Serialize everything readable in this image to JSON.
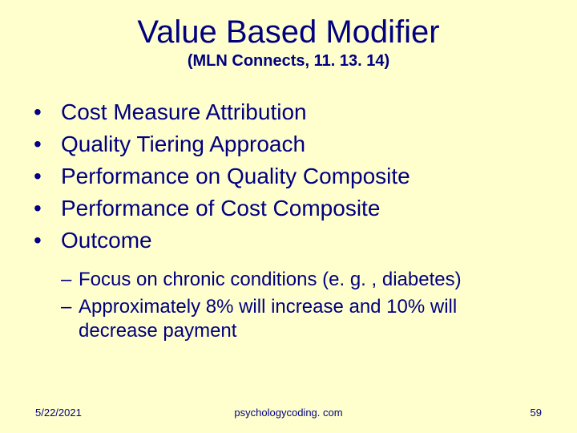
{
  "slide": {
    "title": "Value Based Modifier",
    "subtitle": "(MLN Connects, 11. 13. 14)",
    "bullets": [
      "Cost Measure Attribution",
      "Quality Tiering Approach",
      "Performance on Quality Composite",
      "Performance of Cost Composite",
      "Outcome"
    ],
    "sub_bullets": [
      "Focus on chronic conditions (e. g. , diabetes)",
      "Approximately 8% will increase and 10% will decrease payment"
    ],
    "footer": {
      "date": "5/22/2021",
      "source": "psychologycoding. com",
      "page": "59"
    },
    "colors": {
      "background": "#ffffce",
      "text": "#000080"
    },
    "typography": {
      "title_fontsize": 40,
      "subtitle_fontsize": 20,
      "bullet_fontsize": 28,
      "sub_bullet_fontsize": 24,
      "footer_fontsize": 13,
      "font_family": "Arial"
    }
  }
}
